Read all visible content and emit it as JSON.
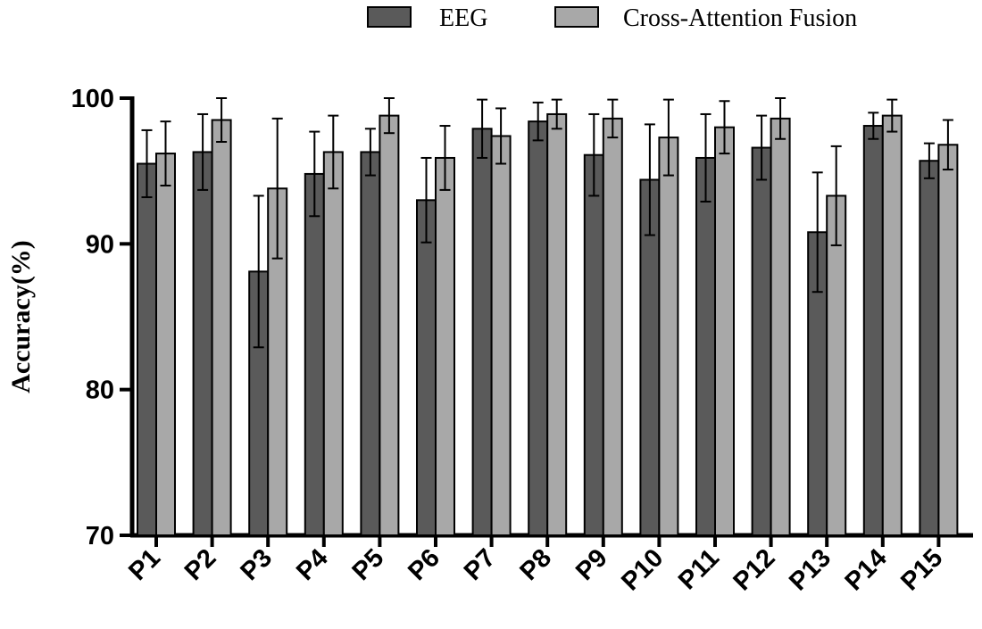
{
  "chart_data": {
    "type": "bar",
    "title": "",
    "xlabel": "",
    "ylabel": "Accuracy(%)",
    "ylim": [
      70,
      100
    ],
    "yticks": [
      70,
      80,
      90,
      100
    ],
    "grid": false,
    "legend_position": "top",
    "categories": [
      "P1",
      "P2",
      "P3",
      "P4",
      "P5",
      "P6",
      "P7",
      "P8",
      "P9",
      "P10",
      "P11",
      "P12",
      "P13",
      "P14",
      "P15"
    ],
    "series": [
      {
        "name": "EEG",
        "color": "#5a5a5a",
        "values": [
          95.5,
          96.3,
          88.1,
          94.8,
          96.3,
          93.0,
          97.9,
          98.4,
          96.1,
          94.4,
          95.9,
          96.6,
          90.8,
          98.1,
          95.7
        ],
        "error": [
          2.3,
          2.6,
          5.2,
          2.9,
          1.6,
          2.9,
          2.0,
          1.3,
          2.8,
          3.8,
          3.0,
          2.2,
          4.1,
          0.9,
          1.2
        ]
      },
      {
        "name": "Cross-Attention Fusion",
        "color": "#a8a8a8",
        "values": [
          96.2,
          98.5,
          93.8,
          96.3,
          98.8,
          95.9,
          97.4,
          98.9,
          98.6,
          97.3,
          98.0,
          98.6,
          93.3,
          98.8,
          96.8
        ],
        "error": [
          2.2,
          1.5,
          4.8,
          2.5,
          1.2,
          2.2,
          1.9,
          1.0,
          1.3,
          2.6,
          1.8,
          1.4,
          3.4,
          1.1,
          1.7
        ]
      }
    ]
  }
}
